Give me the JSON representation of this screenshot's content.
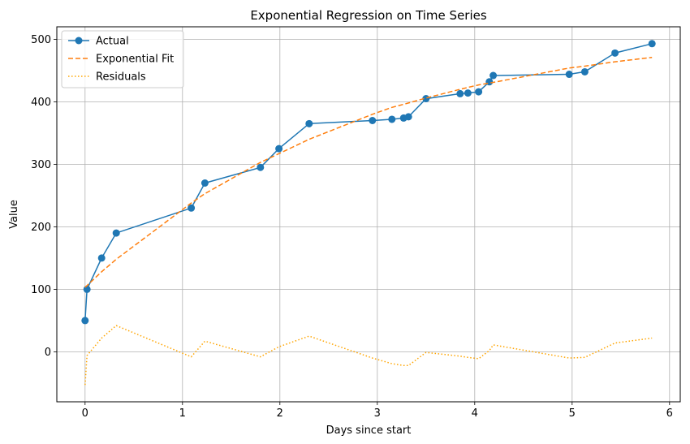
{
  "chart_data": {
    "type": "line",
    "title": "Exponential Regression on Time Series",
    "xlabel": "Days since start",
    "ylabel": "Value",
    "xlim": [
      -0.29,
      6.11
    ],
    "ylim": [
      -80,
      520
    ],
    "x_ticks": [
      0,
      1,
      2,
      3,
      4,
      5,
      6
    ],
    "y_ticks": [
      0,
      100,
      200,
      300,
      400,
      500
    ],
    "grid": true,
    "legend_position": "top-left",
    "colors": {
      "actual": "#1f77b4",
      "fit": "#ff7f0e",
      "residuals": "#ffa500",
      "grid": "#b0b0b0"
    },
    "series": [
      {
        "name": "Actual",
        "style": "solid-markers",
        "x": [
          0.0,
          0.02,
          0.17,
          0.32,
          1.09,
          1.23,
          1.8,
          1.99,
          2.3,
          2.95,
          3.15,
          3.27,
          3.32,
          3.5,
          3.85,
          3.93,
          4.04,
          4.15,
          4.19,
          4.97,
          5.13,
          5.44,
          5.82
        ],
        "y": [
          50,
          100,
          150,
          190,
          230,
          270,
          295,
          325,
          365,
          370,
          372,
          374,
          376,
          405,
          413,
          414,
          416,
          432,
          442,
          444,
          448,
          478,
          493
        ]
      },
      {
        "name": "Exponential Fit",
        "style": "dashed",
        "x": [
          0.0,
          0.02,
          0.17,
          0.32,
          1.09,
          1.23,
          1.8,
          1.99,
          2.3,
          2.95,
          3.15,
          3.27,
          3.32,
          3.5,
          3.85,
          3.93,
          4.04,
          4.15,
          4.19,
          4.97,
          5.13,
          5.44,
          5.82
        ],
        "y": [
          103,
          106,
          128,
          148,
          238,
          253,
          303,
          317,
          340,
          380,
          391,
          396,
          398,
          406,
          420,
          423,
          427,
          430,
          431,
          454,
          457,
          464,
          471
        ]
      },
      {
        "name": "Residuals",
        "style": "dotted",
        "x": [
          0.0,
          0.02,
          0.17,
          0.32,
          1.09,
          1.23,
          1.8,
          1.99,
          2.3,
          2.95,
          3.15,
          3.27,
          3.32,
          3.5,
          3.85,
          3.93,
          4.04,
          4.15,
          4.19,
          4.97,
          5.13,
          5.44,
          5.82
        ],
        "y": [
          -53,
          -6,
          22,
          42,
          -8,
          17,
          -8,
          8,
          25,
          -10,
          -19,
          -22,
          -22,
          -1,
          -7,
          -9,
          -11,
          2,
          11,
          -10,
          -9,
          14,
          22
        ]
      }
    ]
  }
}
